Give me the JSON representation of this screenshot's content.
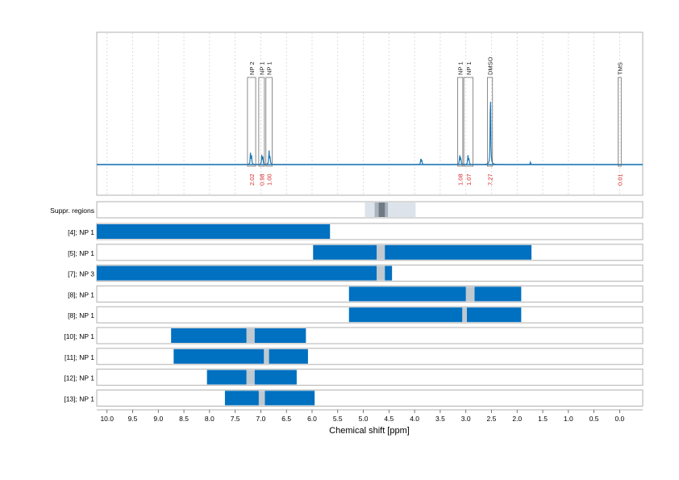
{
  "chart_data": {
    "type": "nmr-spectrum-with-range-bars",
    "xlabel": "Chemical shift [ppm]",
    "xlim": [
      10.2,
      -0.45
    ],
    "x_ticks": [
      "10.0",
      "9.5",
      "9.0",
      "8.5",
      "8.0",
      "7.5",
      "7.0",
      "6.5",
      "6.0",
      "5.5",
      "5.0",
      "4.5",
      "4.0",
      "3.5",
      "3.0",
      "2.5",
      "2.0",
      "1.5",
      "1.0",
      "0.5",
      "0.0"
    ],
    "x_tick_values": [
      10.0,
      9.5,
      9.0,
      8.5,
      8.0,
      7.5,
      7.0,
      6.5,
      6.0,
      5.5,
      5.0,
      4.5,
      4.0,
      3.5,
      3.0,
      2.5,
      2.0,
      1.5,
      1.0,
      0.5,
      0.0
    ],
    "colors": {
      "spectrum": "#1f77b4",
      "bar": "#0070c0",
      "gap": "#c0c8d0",
      "integral_text": "#d62728",
      "suppr_outer": "#dde3ea",
      "suppr_mid": "#aab4be",
      "suppr_inner": "#707a84"
    },
    "spectrum_peaks": [
      {
        "ppm": 7.2,
        "h": 0.17
      },
      {
        "ppm": 7.18,
        "h": 0.1
      },
      {
        "ppm": 6.98,
        "h": 0.13
      },
      {
        "ppm": 6.96,
        "h": 0.09
      },
      {
        "ppm": 6.84,
        "h": 0.19
      },
      {
        "ppm": 6.82,
        "h": 0.1
      },
      {
        "ppm": 3.88,
        "h": 0.07
      },
      {
        "ppm": 3.86,
        "h": 0.06
      },
      {
        "ppm": 3.12,
        "h": 0.12
      },
      {
        "ppm": 3.1,
        "h": 0.09
      },
      {
        "ppm": 2.96,
        "h": 0.12
      },
      {
        "ppm": 2.94,
        "h": 0.08
      },
      {
        "ppm": 2.52,
        "h": 1.0
      },
      {
        "ppm": 1.74,
        "h": 0.03
      }
    ],
    "annotations": [
      {
        "label": "NP 2",
        "from": 7.26,
        "to": 7.1,
        "integral": "2.02"
      },
      {
        "label": "NP 1",
        "from": 7.04,
        "to": 6.93,
        "integral": "0.98"
      },
      {
        "label": "NP 1",
        "from": 6.9,
        "to": 6.78,
        "integral": "1.00"
      },
      {
        "label": "NP 1",
        "from": 3.16,
        "to": 3.06,
        "integral": "1.08"
      },
      {
        "label": "NP 1",
        "from": 3.04,
        "to": 2.86,
        "integral": "1.07"
      },
      {
        "label": "DMSO",
        "from": 2.58,
        "to": 2.48,
        "integral": "7.27"
      },
      {
        "label": "TMS",
        "from": 0.03,
        "to": -0.03,
        "integral": "0.01"
      }
    ],
    "suppressed_region": {
      "label": "Suppr. regions",
      "outer": [
        4.97,
        3.98
      ],
      "mid": [
        4.78,
        4.52
      ],
      "inner": [
        4.7,
        4.58
      ]
    },
    "range_rows": [
      {
        "label": "[4]; NP 1",
        "segments": [
          [
            10.2,
            5.65
          ]
        ]
      },
      {
        "label": "[5]; NP 1",
        "segments": [
          [
            5.98,
            4.74
          ],
          [
            4.58,
            1.72
          ]
        ]
      },
      {
        "label": "[7]; NP 3",
        "segments": [
          [
            10.2,
            4.74
          ],
          [
            4.58,
            4.44
          ]
        ]
      },
      {
        "label": "[8]; NP 1",
        "segments": [
          [
            5.28,
            3.0
          ],
          [
            2.83,
            1.92
          ]
        ]
      },
      {
        "label": "[8]; NP 1",
        "segments": [
          [
            5.28,
            3.07
          ],
          [
            2.98,
            1.92
          ]
        ]
      },
      {
        "label": "[10]; NP 1",
        "segments": [
          [
            8.75,
            7.28
          ],
          [
            7.12,
            6.12
          ]
        ]
      },
      {
        "label": "[11]; NP 1",
        "segments": [
          [
            8.7,
            6.94
          ],
          [
            6.84,
            6.08
          ]
        ]
      },
      {
        "label": "[12]; NP 1",
        "segments": [
          [
            8.05,
            7.28
          ],
          [
            7.12,
            6.3
          ]
        ]
      },
      {
        "label": "[13]; NP 1",
        "segments": [
          [
            7.7,
            7.04
          ],
          [
            6.92,
            5.95
          ]
        ]
      }
    ]
  }
}
